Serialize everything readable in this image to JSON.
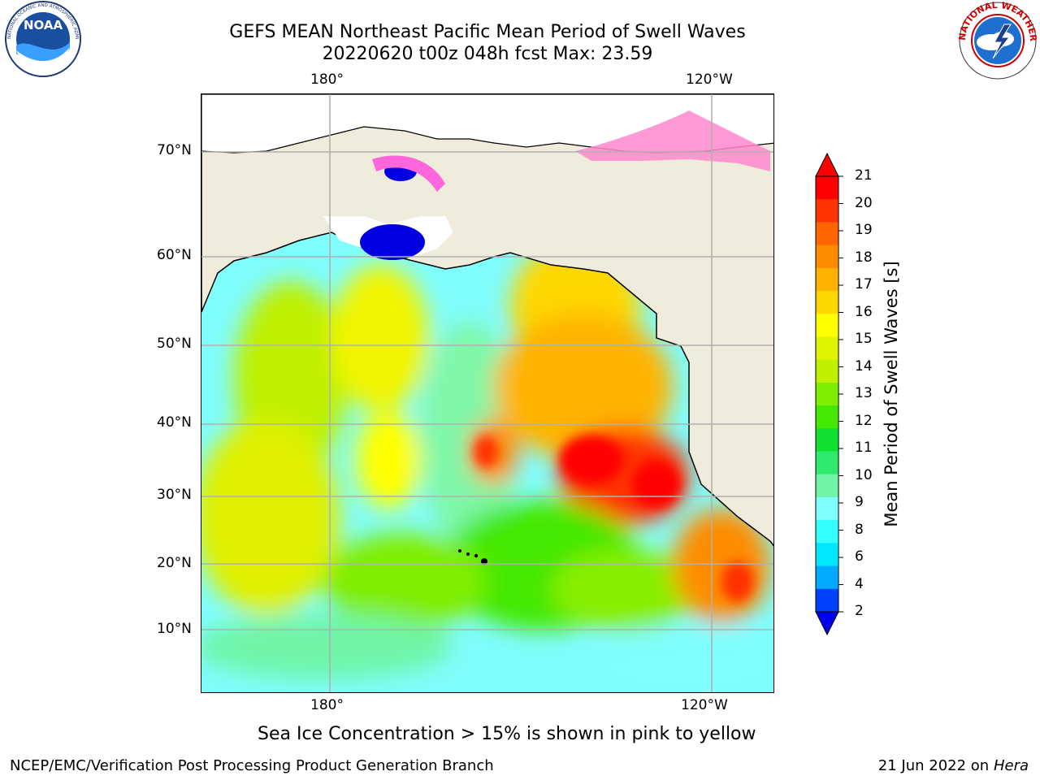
{
  "header": {
    "title_line1": "GEFS MEAN Northeast Pacific Mean Period of Swell Waves",
    "title_line2": "20220620 t00z 048h fcst   Max: 23.59"
  },
  "logos": {
    "left": {
      "name": "NOAA",
      "text": "NOAA",
      "ring_text": "NATIONAL OCEANIC AND ATMOSPHERIC ADMINISTRATION · U.S. DEPARTMENT OF COMMERCE"
    },
    "right": {
      "name": "National Weather Service",
      "ring_text": "NATIONAL WEATHER SERVICE"
    }
  },
  "map": {
    "lon_labels_top": [
      "180°",
      "120°W"
    ],
    "lon_labels_bottom": [
      "180°",
      "120°W"
    ],
    "lat_labels": [
      "70°N",
      "60°N",
      "50°N",
      "40°N",
      "30°N",
      "20°N",
      "10°N"
    ],
    "land_color": "#efecdc",
    "grid_color": "#b0b0b0"
  },
  "colorbar": {
    "label": "Mean Period of Swell Waves [s]",
    "ticks": [
      "21",
      "20",
      "19",
      "18",
      "17",
      "16",
      "15",
      "14",
      "13",
      "12",
      "11",
      "10",
      "9",
      "8",
      "6",
      "4",
      "2"
    ],
    "colors_top_to_bottom": [
      "#ff0000",
      "#ff3300",
      "#ff6600",
      "#ff8c00",
      "#ffb300",
      "#ffd700",
      "#ffff00",
      "#ddf500",
      "#c0f000",
      "#80ee00",
      "#44e800",
      "#10e030",
      "#30ea70",
      "#70f5a8",
      "#80ffff",
      "#33ffff",
      "#00e8ff",
      "#00aaff",
      "#0040ff"
    ]
  },
  "notes": {
    "sea_ice": "Sea Ice Concentration > 15% is shown in pink to yellow"
  },
  "footer": {
    "left": "NCEP/EMC/Verification Post Processing Product Generation Branch",
    "right_date": "21 Jun 2022 on",
    "right_host": "Hera"
  }
}
